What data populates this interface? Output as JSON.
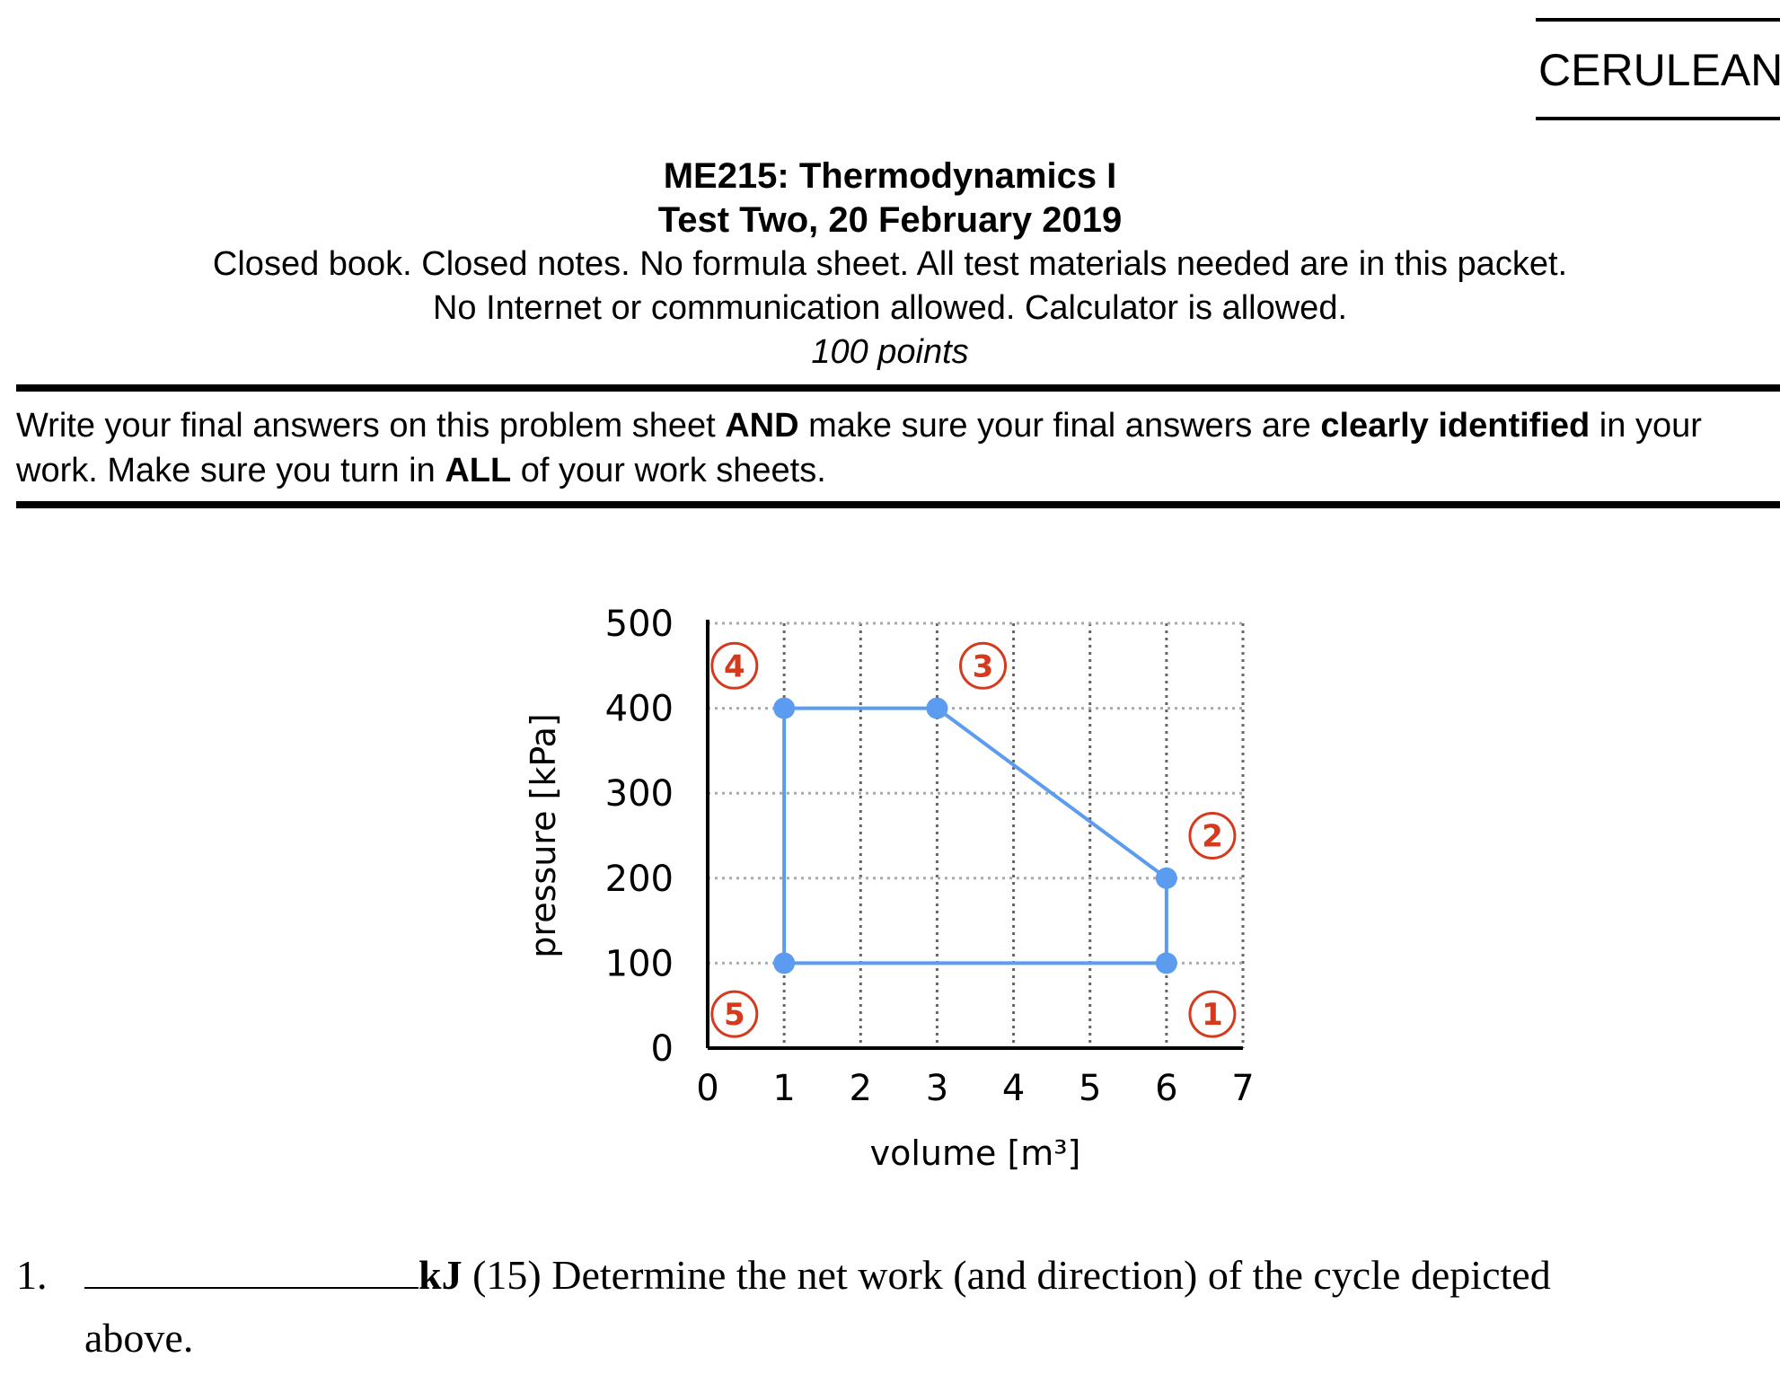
{
  "version_label": "CERULEAN",
  "header": {
    "course": "ME215: Thermodynamics I",
    "test": "Test Two, 20 February 2019",
    "rules_line1": "Closed book. Closed notes. No formula sheet. All test materials needed are in this packet.",
    "rules_line2": "No Internet or communication allowed. Calculator is allowed.",
    "points": "100 points"
  },
  "instructions": {
    "part1": "Write your final answers on this problem sheet ",
    "bold1": "AND",
    "part2": " make sure your final answers are ",
    "bold2": "clearly identified",
    "part3": " in your work. Make sure you turn in ",
    "bold3": "ALL",
    "part4": " of your work sheets."
  },
  "chart_data": {
    "type": "line",
    "xlabel": "volume [m³]",
    "ylabel": "pressure [kPa]",
    "xlim": [
      0,
      7
    ],
    "ylim": [
      0,
      500
    ],
    "x_ticks": [
      0,
      1,
      2,
      3,
      4,
      5,
      6,
      7
    ],
    "y_ticks": [
      0,
      100,
      200,
      300,
      400,
      500
    ],
    "grid": true,
    "series_color": "#5b9cf0",
    "marker_color": "#d63a1e",
    "cycle_points": [
      {
        "x": 6,
        "y": 100
      },
      {
        "x": 6,
        "y": 200
      },
      {
        "x": 3,
        "y": 400
      },
      {
        "x": 1,
        "y": 400
      },
      {
        "x": 1,
        "y": 100
      }
    ],
    "state_labels": [
      {
        "label": "1",
        "x": 6.6,
        "y": 40
      },
      {
        "label": "2",
        "x": 6.6,
        "y": 250
      },
      {
        "label": "3",
        "x": 3.6,
        "y": 450
      },
      {
        "label": "4",
        "x": 0.35,
        "y": 450
      },
      {
        "label": "5",
        "x": 0.35,
        "y": 40
      }
    ]
  },
  "question": {
    "number": "1.",
    "unit": "kJ",
    "text": " (15) Determine the net work (and direction) of the cycle depicted above."
  }
}
